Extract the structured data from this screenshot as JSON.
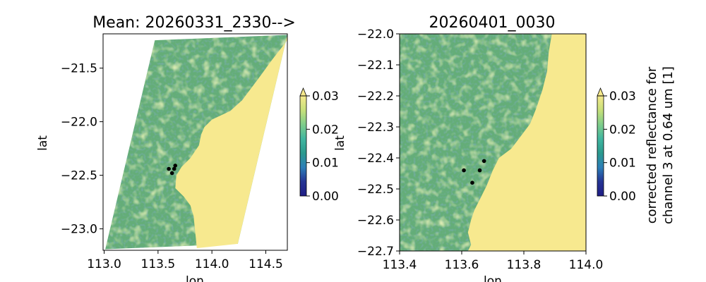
{
  "chart_data": [
    {
      "type": "heatmap",
      "title": "Mean: 20260331_2330-->",
      "xlabel": "lon",
      "ylabel": "lat",
      "xlim": [
        112.99,
        114.7
      ],
      "ylim": [
        -23.2,
        -21.18
      ],
      "xticks": [
        113.0,
        113.5,
        114.0,
        114.5
      ],
      "xtick_labels": [
        "113.0",
        "113.5",
        "114.0",
        "114.5"
      ],
      "yticks": [
        -21.5,
        -22.0,
        -22.5,
        -23.0
      ],
      "ytick_labels": [
        "−21.5",
        "−22.0",
        "−22.5",
        "−23.0"
      ],
      "swath_corners_lonlat": [
        [
          113.47,
          -21.24
        ],
        [
          114.7,
          -21.19
        ],
        [
          114.24,
          -23.14
        ],
        [
          113.01,
          -23.19
        ]
      ],
      "land_boundary_lonlat": [
        [
          114.7,
          -21.24
        ],
        [
          114.56,
          -21.42
        ],
        [
          114.43,
          -21.6
        ],
        [
          114.28,
          -21.8
        ],
        [
          114.17,
          -21.9
        ],
        [
          114.0,
          -21.98
        ],
        [
          113.93,
          -22.05
        ],
        [
          113.9,
          -22.12
        ],
        [
          113.88,
          -22.22
        ],
        [
          113.8,
          -22.34
        ],
        [
          113.72,
          -22.42
        ],
        [
          113.67,
          -22.5
        ],
        [
          113.66,
          -22.62
        ],
        [
          113.74,
          -22.7
        ],
        [
          113.8,
          -22.78
        ],
        [
          113.83,
          -22.88
        ],
        [
          113.84,
          -22.98
        ],
        [
          113.85,
          -23.08
        ],
        [
          113.86,
          -23.18
        ]
      ],
      "points_lonlat": [
        [
          113.6,
          -22.44
        ],
        [
          113.63,
          -22.48
        ],
        [
          113.66,
          -22.41
        ],
        [
          113.65,
          -22.44
        ]
      ]
    },
    {
      "type": "heatmap",
      "title": "20260401_0030",
      "xlabel": "lon",
      "ylabel": "lat",
      "xlim": [
        113.4,
        114.0
      ],
      "ylim": [
        -22.7,
        -22.0
      ],
      "xticks": [
        113.4,
        113.6,
        113.8,
        114.0
      ],
      "xtick_labels": [
        "113.4",
        "113.6",
        "113.8",
        "114.0"
      ],
      "yticks": [
        -22.0,
        -22.1,
        -22.2,
        -22.3,
        -22.4,
        -22.5,
        -22.6,
        -22.7
      ],
      "ytick_labels": [
        "−22.0",
        "−22.1",
        "−22.2",
        "−22.3",
        "−22.4",
        "−22.5",
        "−22.6",
        "−22.7"
      ],
      "land_boundary_lonlat": [
        [
          113.89,
          -22.0
        ],
        [
          113.88,
          -22.06
        ],
        [
          113.875,
          -22.12
        ],
        [
          113.86,
          -22.18
        ],
        [
          113.84,
          -22.24
        ],
        [
          113.82,
          -22.29
        ],
        [
          113.79,
          -22.33
        ],
        [
          113.76,
          -22.37
        ],
        [
          113.72,
          -22.4
        ],
        [
          113.7,
          -22.44
        ],
        [
          113.68,
          -22.49
        ],
        [
          113.66,
          -22.53
        ],
        [
          113.64,
          -22.57
        ],
        [
          113.63,
          -22.6
        ],
        [
          113.62,
          -22.64
        ],
        [
          113.63,
          -22.68
        ],
        [
          113.62,
          -22.7
        ]
      ],
      "points_lonlat": [
        [
          113.607,
          -22.44
        ],
        [
          113.634,
          -22.48
        ],
        [
          113.658,
          -22.44
        ],
        [
          113.672,
          -22.41
        ]
      ]
    }
  ],
  "colorbar": {
    "label_line1": "corrected reflectance for",
    "label_line2": "channel 3 at 0.64 um [1]",
    "range": [
      0.0,
      0.03
    ],
    "extend": "max",
    "ticks": [
      0.0,
      0.01,
      0.02,
      0.03
    ],
    "tick_labels": [
      "0.00",
      "0.01",
      "0.02",
      "0.03"
    ],
    "colormap": [
      "#1f1d85",
      "#253494",
      "#2c7fb8",
      "#2b9a8e",
      "#41b6a0",
      "#7fcd8a",
      "#c7e07a",
      "#f6e98c"
    ]
  },
  "colors": {
    "land": "#f7e98f",
    "water_main": "#64ad78",
    "water_light": "#8cc56f",
    "water_dark": "#3d9180",
    "points": "#000000"
  }
}
